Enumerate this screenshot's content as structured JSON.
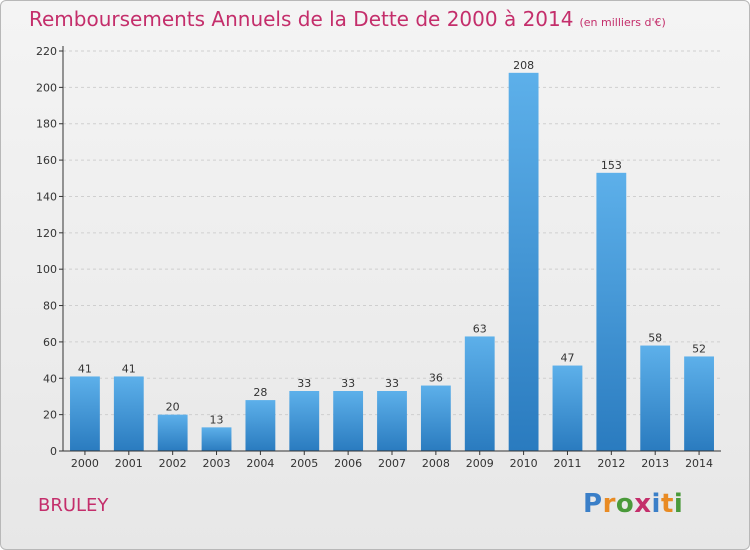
{
  "title": "Remboursements Annuels de la Dette de 2000 à 2014",
  "unit": "(en milliers d'€)",
  "commune": "BRULEY",
  "logo": {
    "text": "Proxiti",
    "letter_colors": [
      "#3a7fc8",
      "#e98b23",
      "#4a9a3a",
      "#c42e6b",
      "#3a7fc8",
      "#e98b23",
      "#4a9a3a"
    ]
  },
  "colors": {
    "title": "#c42e6b",
    "bar_light": "#5db0ea",
    "bar_dark": "#2a7bbf",
    "grid": "#cfcfcf",
    "axis": "#333333"
  },
  "chart_data": {
    "type": "bar",
    "categories": [
      "2000",
      "2001",
      "2002",
      "2003",
      "2004",
      "2005",
      "2006",
      "2007",
      "2008",
      "2009",
      "2010",
      "2011",
      "2012",
      "2013",
      "2014"
    ],
    "values": [
      41,
      41,
      20,
      13,
      28,
      33,
      33,
      33,
      36,
      63,
      208,
      47,
      153,
      58,
      52
    ],
    "data_labels": [
      "41",
      "41",
      "20",
      "13",
      "28",
      "33",
      "33",
      "33",
      "36",
      "63",
      "208",
      "47",
      "153",
      "58",
      "52"
    ],
    "ylim": [
      0,
      220
    ],
    "yticks": [
      0,
      20,
      40,
      60,
      80,
      100,
      120,
      140,
      160,
      180,
      200,
      220
    ],
    "grid": true,
    "xlabel": "",
    "ylabel": ""
  }
}
